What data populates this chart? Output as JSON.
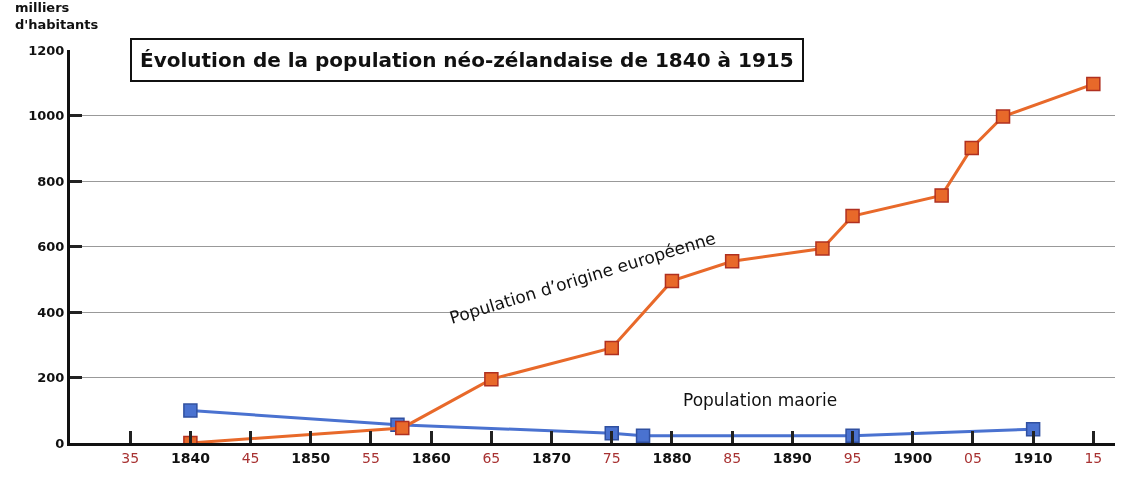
{
  "chart_data": {
    "type": "line",
    "title": "Évolution de la population néo-zélandaise de 1840 à 1915",
    "ylabel": "milliers d'habitants",
    "xlim": [
      1830,
      1916.8
    ],
    "ylim": [
      0,
      1200
    ],
    "yticks": [
      0,
      200,
      400,
      600,
      800,
      1000,
      1200
    ],
    "xticks": [
      {
        "value": 1835,
        "label": "35"
      },
      1840,
      {
        "value": 1845,
        "label": "45"
      },
      1850,
      {
        "value": 1855,
        "label": "55"
      },
      1860,
      {
        "value": 1865,
        "label": "65"
      },
      1870,
      {
        "value": 1875,
        "label": "75"
      },
      1880,
      {
        "value": 1885,
        "label": "85"
      },
      1890,
      {
        "value": 1895,
        "label": "95"
      },
      1900,
      {
        "value": 1905,
        "label": "05"
      },
      1910,
      {
        "value": 1915,
        "label": "15"
      }
    ],
    "grid": "y",
    "legend": false,
    "marker": "square",
    "line_style": "solid",
    "series": [
      {
        "name": "Population d’origine européenne",
        "color": "#e8692a",
        "x": [
          1840,
          1857.6,
          1865,
          1875,
          1880,
          1885,
          1892.5,
          1895,
          1902.4,
          1904.9,
          1907.5,
          1915
        ],
        "values": [
          0,
          46,
          195,
          290,
          495,
          555,
          594,
          693,
          756,
          901,
          997,
          1096
        ]
      },
      {
        "name": "Population maorie",
        "color": "#4a72d0",
        "x": [
          1840,
          1857.2,
          1875,
          1877.6,
          1895,
          1910
        ],
        "values": [
          99,
          56,
          30,
          22,
          22,
          42
        ]
      }
    ]
  }
}
